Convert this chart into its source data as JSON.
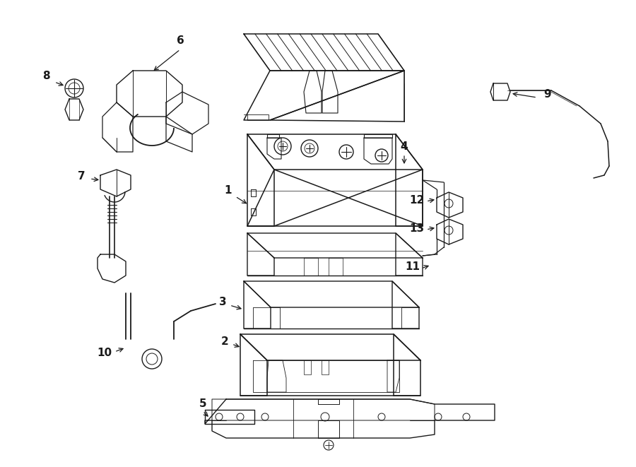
{
  "bg_color": "#ffffff",
  "line_color": "#1a1a1a",
  "lw": 1.0,
  "fig_w": 9.0,
  "fig_h": 6.61,
  "dpi": 100
}
